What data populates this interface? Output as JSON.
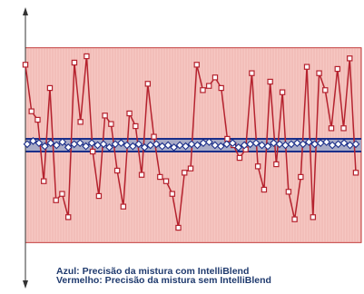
{
  "colors": {
    "red_line": "#b5222e",
    "red_band_fill": "#f6c7c2",
    "red_band_border": "#c23a3a",
    "blue_line": "#1b2f8a",
    "blue_band_fill": "#9aa6c8",
    "axis": "#333333"
  },
  "legend": {
    "blue": "Azul: Precisão da mistura com IntelliBlend",
    "red": "Vermelho: Precisão da mistura sem IntelliBlend"
  },
  "chart_data": {
    "type": "line",
    "title": "",
    "xlabel": "",
    "ylabel": "",
    "grid": false,
    "ylim": [
      -6,
      6
    ],
    "red_band": [
      -4.6,
      4.6
    ],
    "blue_band": [
      -0.3,
      0.3
    ],
    "series": [
      {
        "color": "red",
        "values": [
          3.8,
          1.6,
          1.2,
          -1.7,
          2.7,
          -2.6,
          -2.3,
          -3.4,
          3.9,
          1.1,
          4.2,
          -0.3,
          -2.4,
          1.4,
          1.0,
          -1.2,
          -2.9,
          1.5,
          0.9,
          -1.4,
          2.9,
          0.4,
          -1.5,
          -1.7,
          -2.3,
          -3.9,
          -1.3,
          -1.1,
          3.8,
          2.6,
          2.8,
          3.2,
          2.7,
          0.3,
          0.0,
          -0.6,
          -0.2,
          3.4,
          -1.0,
          -2.1,
          3.0,
          -0.9,
          2.5,
          -2.2,
          -3.5,
          -1.5,
          3.7,
          -3.4,
          3.4,
          2.6,
          0.8,
          3.6,
          0.8,
          4.1,
          -1.3
        ]
      },
      {
        "color": "blue",
        "values": [
          0.05,
          0.2,
          0.1,
          -0.05,
          0.1,
          0.0,
          0.15,
          -0.1,
          0.05,
          0.1,
          -0.05,
          0.1,
          0.0,
          0.05,
          -0.1,
          0.05,
          0.1,
          0.0,
          -0.05,
          0.05,
          -0.1,
          0.0,
          0.05,
          -0.05,
          0.0,
          -0.1,
          0.0,
          -0.05,
          0.05,
          0.0,
          0.1,
          0.15,
          0.0,
          -0.05,
          0.05,
          0.1,
          -0.1,
          0.0,
          0.05,
          0.1,
          0.0,
          -0.05,
          0.1,
          0.05,
          0.0,
          0.05,
          0.1,
          0.05,
          0.15,
          0.05,
          0.1,
          0.15,
          0.0,
          0.05,
          0.1,
          0.0,
          0.05
        ]
      }
    ]
  }
}
